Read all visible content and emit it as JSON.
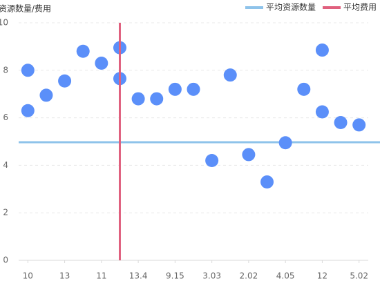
{
  "chart_data": {
    "type": "scatter",
    "y_axis_label": "资源数量/费用",
    "xlim": [
      -0.5,
      18.5
    ],
    "xticks": [
      {
        "value": 0,
        "label": "10"
      },
      {
        "value": 2,
        "label": "13"
      },
      {
        "value": 4,
        "label": "11"
      },
      {
        "value": 6,
        "label": "13.4"
      },
      {
        "value": 8,
        "label": "9.15"
      },
      {
        "value": 10,
        "label": "3.03"
      },
      {
        "value": 12,
        "label": "2.02"
      },
      {
        "value": 14,
        "label": "4.05"
      },
      {
        "value": 16,
        "label": "12"
      },
      {
        "value": 18,
        "label": "5.02"
      }
    ],
    "ylim": [
      0,
      10
    ],
    "yticks": [
      0,
      2,
      4,
      6,
      8,
      10
    ],
    "grid": true,
    "color": "#5b8ff9",
    "x": [
      0,
      0,
      1,
      2,
      3,
      4,
      5,
      5,
      6,
      7,
      8,
      9,
      10,
      11,
      12,
      13,
      14,
      15,
      16,
      16,
      17,
      18
    ],
    "values": [
      8.0,
      6.3,
      6.95,
      7.55,
      8.8,
      8.3,
      8.95,
      7.65,
      6.8,
      6.8,
      7.2,
      7.2,
      4.2,
      7.8,
      4.45,
      3.3,
      4.95,
      7.2,
      8.85,
      6.25,
      5.8,
      5.7
    ],
    "reference_lines": [
      {
        "name": "平均资源数量",
        "color": "#8ec3ea",
        "axis": "y",
        "value": 4.97
      },
      {
        "name": "平均费用",
        "color": "#e0607e",
        "axis": "x",
        "value": 5
      }
    ],
    "legend": "top-right"
  }
}
